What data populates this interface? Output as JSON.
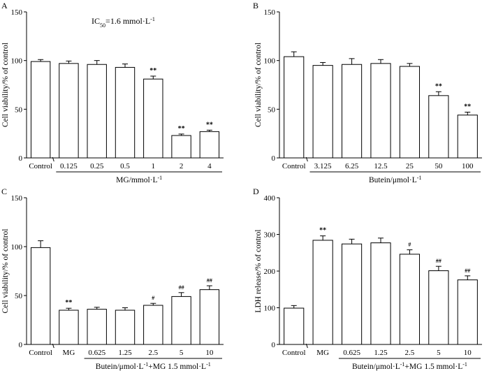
{
  "chart_data": [
    {
      "type": "bar",
      "panel_label": "A",
      "annotation": {
        "prefix": "IC",
        "subscript": "50",
        "suffix": "=1.6 mmol·L",
        "superscript": "-1"
      },
      "categories": [
        "Control",
        "0.125",
        "0.25",
        "0.5",
        "1",
        "2",
        "4"
      ],
      "values": [
        99,
        97,
        96,
        93,
        81,
        23,
        27
      ],
      "errors": [
        2,
        2.5,
        4,
        3.5,
        3,
        1.5,
        1.5
      ],
      "significance": [
        "",
        "",
        "",
        "",
        "**",
        "**",
        "**"
      ],
      "ylabel": "Cell viability/% of control",
      "xlabel": {
        "main": "MG/mmol·L",
        "superscript": "-1"
      },
      "xlabel_group_start": 1,
      "ylim": [
        0,
        150
      ],
      "yticks": [
        0,
        50,
        100,
        150
      ]
    },
    {
      "type": "bar",
      "panel_label": "B",
      "categories": [
        "Control",
        "3.125",
        "6.25",
        "12.5",
        "25",
        "50",
        "100"
      ],
      "values": [
        104,
        95,
        96,
        97,
        94,
        64,
        44
      ],
      "errors": [
        5,
        3,
        6,
        4,
        3,
        4,
        3
      ],
      "significance": [
        "",
        "",
        "",
        "",
        "",
        "**",
        "**"
      ],
      "ylabel": "Cell viability/% of control",
      "xlabel": {
        "main": "Butein/μmol·L",
        "superscript": "-1"
      },
      "xlabel_group_start": 1,
      "ylim": [
        0,
        150
      ],
      "yticks": [
        0,
        50,
        100,
        150
      ]
    },
    {
      "type": "bar",
      "panel_label": "C",
      "categories": [
        "Control",
        "MG",
        "0.625",
        "1.25",
        "2.5",
        "5",
        "10"
      ],
      "values": [
        99,
        35,
        36,
        35,
        40,
        49,
        56
      ],
      "errors": [
        7,
        2,
        2,
        2.5,
        2,
        4,
        4
      ],
      "significance": [
        "",
        "**",
        "",
        "",
        "#",
        "##",
        "##"
      ],
      "ylabel": "Cell viability/% of control",
      "xlabel": {
        "main": "Butein/μmol·L",
        "superscript": "-1",
        "tail": "+MG 1.5 mmol·L",
        "superscript2": "-1"
      },
      "xlabel_group_start": 2,
      "ylim": [
        0,
        150
      ],
      "yticks": [
        0,
        50,
        100,
        150
      ]
    },
    {
      "type": "bar",
      "panel_label": "D",
      "categories": [
        "Control",
        "MG",
        "0.625",
        "1.25",
        "2.5",
        "5",
        "10"
      ],
      "values": [
        99,
        284,
        274,
        277,
        246,
        201,
        176
      ],
      "errors": [
        7,
        12,
        13,
        13,
        12,
        12,
        11
      ],
      "significance": [
        "",
        "**",
        "",
        "",
        "#",
        "##",
        "##"
      ],
      "ylabel": "LDH release/% of control",
      "xlabel": {
        "main": "Butein/μmol·L",
        "superscript": "-1",
        "tail": "+MG 1.5 mmol·L",
        "superscript2": "-1"
      },
      "xlabel_group_start": 2,
      "ylim": [
        0,
        400
      ],
      "yticks": [
        0,
        100,
        200,
        300,
        400
      ]
    }
  ]
}
